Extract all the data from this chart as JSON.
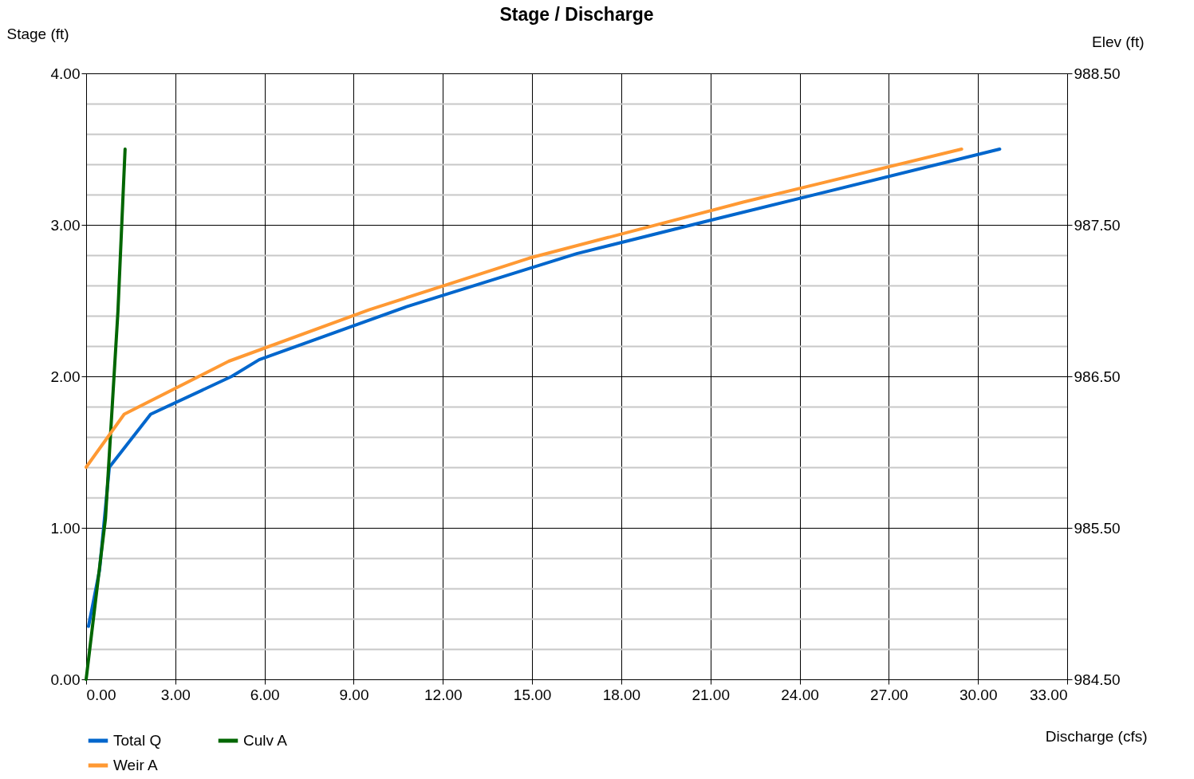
{
  "chart_data": {
    "type": "line",
    "title": "Stage / Discharge",
    "xlabel": "Discharge (cfs)",
    "ylabel": "Stage (ft)",
    "y2label": "Elev (ft)",
    "xlim": [
      0,
      33
    ],
    "xticks": [
      {
        "value": 0,
        "label": "0.00"
      },
      {
        "value": 3,
        "label": "3.00"
      },
      {
        "value": 6,
        "label": "6.00"
      },
      {
        "value": 9,
        "label": "9.00"
      },
      {
        "value": 12,
        "label": "12.00"
      },
      {
        "value": 15,
        "label": "15.00"
      },
      {
        "value": 18,
        "label": "18.00"
      },
      {
        "value": 21,
        "label": "21.00"
      },
      {
        "value": 24,
        "label": "24.00"
      },
      {
        "value": 27,
        "label": "27.00"
      },
      {
        "value": 30,
        "label": "30.00"
      },
      {
        "value": 33,
        "label": "33.00"
      }
    ],
    "ylim": [
      0,
      4
    ],
    "yticks": [
      {
        "value": 0,
        "label": "0.00"
      },
      {
        "value": 0.2,
        "label": null
      },
      {
        "value": 0.4,
        "label": null
      },
      {
        "value": 0.6,
        "label": null
      },
      {
        "value": 0.8,
        "label": null
      },
      {
        "value": 1,
        "label": "1.00"
      },
      {
        "value": 1.2,
        "label": null
      },
      {
        "value": 1.4,
        "label": null
      },
      {
        "value": 1.6,
        "label": null
      },
      {
        "value": 1.8,
        "label": null
      },
      {
        "value": 2,
        "label": "2.00"
      },
      {
        "value": 2.2,
        "label": null
      },
      {
        "value": 2.4,
        "label": null
      },
      {
        "value": 2.6,
        "label": null
      },
      {
        "value": 2.8,
        "label": null
      },
      {
        "value": 3,
        "label": "3.00"
      },
      {
        "value": 3.2,
        "label": null
      },
      {
        "value": 3.4,
        "label": null
      },
      {
        "value": 3.6,
        "label": null
      },
      {
        "value": 3.8,
        "label": null
      },
      {
        "value": 4,
        "label": "4.00"
      }
    ],
    "y2lim": [
      984.5,
      988.5
    ],
    "y2ticks": [
      {
        "value": 984.5,
        "label": "984.50"
      },
      {
        "value": 985.5,
        "label": "985.50"
      },
      {
        "value": 986.5,
        "label": "986.50"
      },
      {
        "value": 987.5,
        "label": "987.50"
      },
      {
        "value": 988.5,
        "label": "988.50"
      }
    ],
    "grid": true,
    "legend": "bottom left",
    "marker": "none",
    "line_style": "solid",
    "series": [
      {
        "name": "Total Q",
        "color": "#0066cc",
        "x": [
          0.08,
          0.45,
          0.78,
          2.17,
          4.9,
          5.82,
          10.78,
          16.5,
          21,
          30.73
        ],
        "values": [
          0.35,
          0.72,
          1.4,
          1.75,
          2.0,
          2.11,
          2.46,
          2.81,
          3.03,
          3.5
        ]
      },
      {
        "name": "Culv A",
        "color": "#006600",
        "x": [
          0,
          0.44,
          0.65,
          1.07,
          1.31
        ],
        "values": [
          0,
          0.72,
          1.06,
          2.43,
          3.5
        ]
      },
      {
        "name": "Weir A",
        "color": "#ff9933",
        "x": [
          0,
          1.28,
          4.8,
          9.53,
          14.9,
          22.1,
          29.45
        ],
        "values": [
          1.4,
          1.75,
          2.1,
          2.44,
          2.78,
          3.15,
          3.5
        ]
      }
    ]
  }
}
